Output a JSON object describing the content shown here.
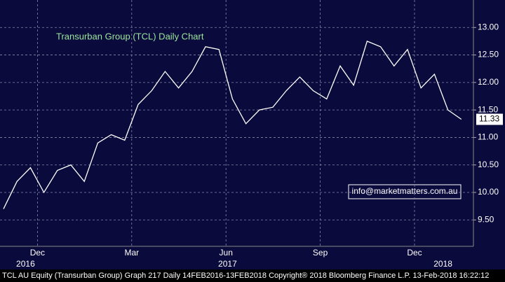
{
  "chart_data": {
    "type": "line",
    "title": "Transurban Group (TCL) Daily Chart",
    "annotation": "info@marketmatters.com.au",
    "footer": "TCL AU Equity (Transurban Group) Graph 217  Daily 14FEB2016-13FEB2018 Copyright® 2018 Bloomberg Finance L.P. 13-Feb-2018 16:22:12",
    "categories": [
      null,
      null,
      "Dec",
      null,
      null,
      null,
      null,
      null,
      null,
      "Mar",
      null,
      null,
      null,
      null,
      null,
      null,
      "Jun",
      null,
      null,
      null,
      null,
      null,
      null,
      "Sep",
      null,
      null,
      null,
      null,
      null,
      null,
      "Dec",
      null,
      null,
      null,
      null
    ],
    "year_categories": [
      null,
      null,
      "2016",
      null,
      null,
      null,
      null,
      null,
      null,
      null,
      null,
      null,
      null,
      null,
      null,
      null,
      null,
      "2017",
      null,
      null,
      null,
      null,
      null,
      null,
      null,
      null,
      null,
      null,
      null,
      null,
      null,
      null,
      null,
      "2018",
      null
    ],
    "series": [
      {
        "color": "#ffffff",
        "values": [
          9.7,
          10.2,
          10.45,
          10.0,
          10.4,
          10.5,
          10.2,
          10.9,
          11.05,
          10.95,
          11.6,
          11.85,
          12.2,
          11.9,
          12.2,
          12.65,
          12.6,
          11.7,
          11.25,
          11.5,
          11.55,
          11.85,
          12.1,
          11.85,
          11.7,
          12.3,
          11.95,
          12.75,
          12.65,
          12.3,
          12.6,
          11.9,
          12.15,
          11.5,
          11.33
        ]
      }
    ],
    "ylim": [
      9.02,
      13.5
    ],
    "yticks": [
      {
        "value": 9.5,
        "label": "9.50"
      },
      {
        "value": 10,
        "label": "10.00"
      },
      {
        "value": 10.5,
        "label": "10.50"
      },
      {
        "value": 11,
        "label": "11.00"
      },
      {
        "value": 11.5,
        "label": "11.50"
      },
      {
        "value": 12,
        "label": "12.00"
      },
      {
        "value": 12.5,
        "label": "12.50"
      },
      {
        "value": 13,
        "label": "13.00"
      }
    ],
    "grid": true
  }
}
